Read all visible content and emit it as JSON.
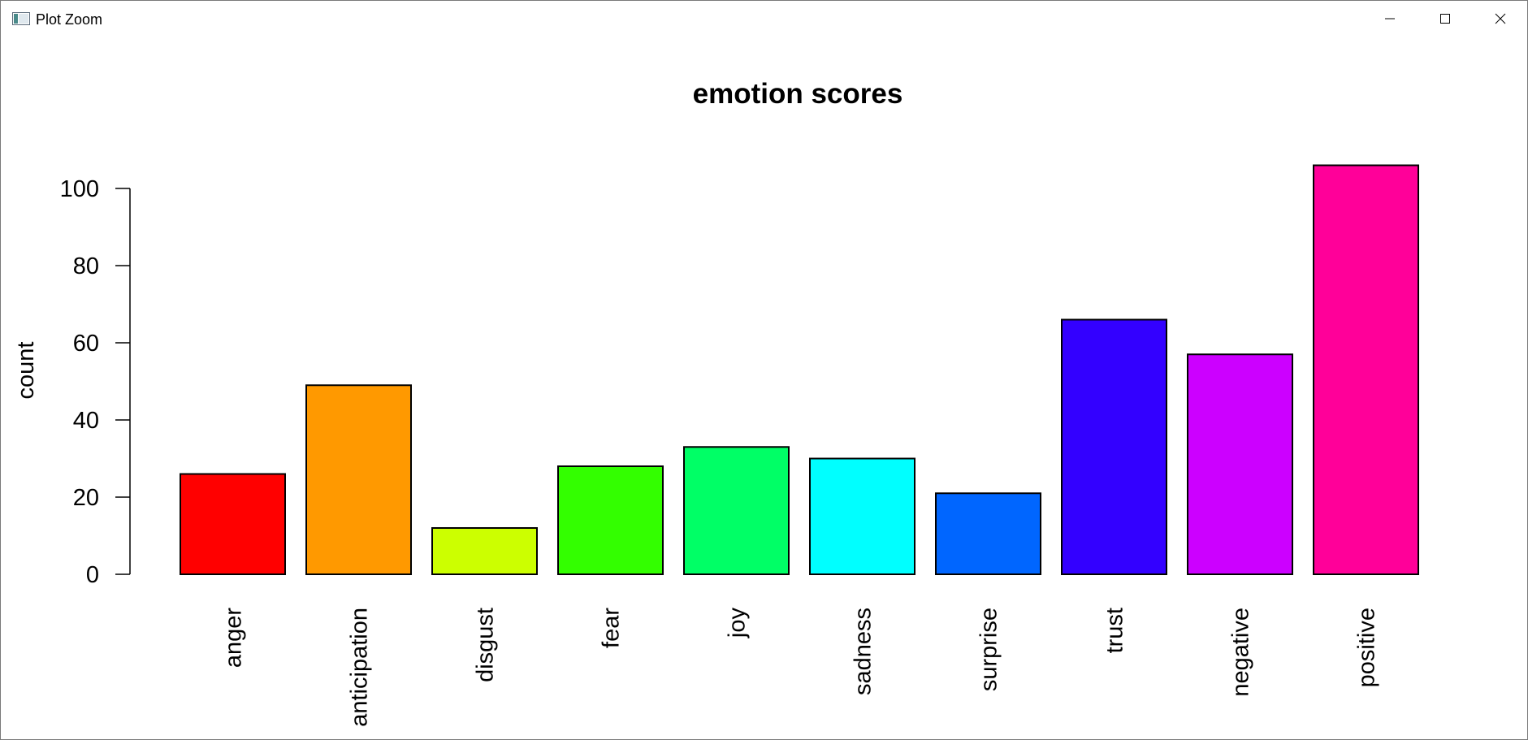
{
  "window": {
    "title": "Plot Zoom",
    "controls": {
      "minimize_icon": "minimize-icon",
      "maximize_icon": "maximize-icon",
      "close_icon": "close-icon"
    }
  },
  "chart_data": {
    "type": "bar",
    "title": "emotion scores",
    "xlabel": "",
    "ylabel": "count",
    "ylim": [
      0,
      106
    ],
    "yticks": [
      0,
      20,
      40,
      60,
      80,
      100
    ],
    "categories": [
      "anger",
      "anticipation",
      "disgust",
      "fear",
      "joy",
      "sadness",
      "surprise",
      "trust",
      "negative",
      "positive"
    ],
    "values": [
      26,
      49,
      12,
      28,
      33,
      30,
      21,
      66,
      57,
      106
    ],
    "colors": [
      "#FF0000",
      "#FF9900",
      "#CCFF00",
      "#33FF00",
      "#00FF66",
      "#00FFFF",
      "#0066FF",
      "#3300FF",
      "#CC00FF",
      "#FF0099"
    ],
    "grid": false,
    "legend": "none",
    "category_label_orientation": "vertical"
  }
}
